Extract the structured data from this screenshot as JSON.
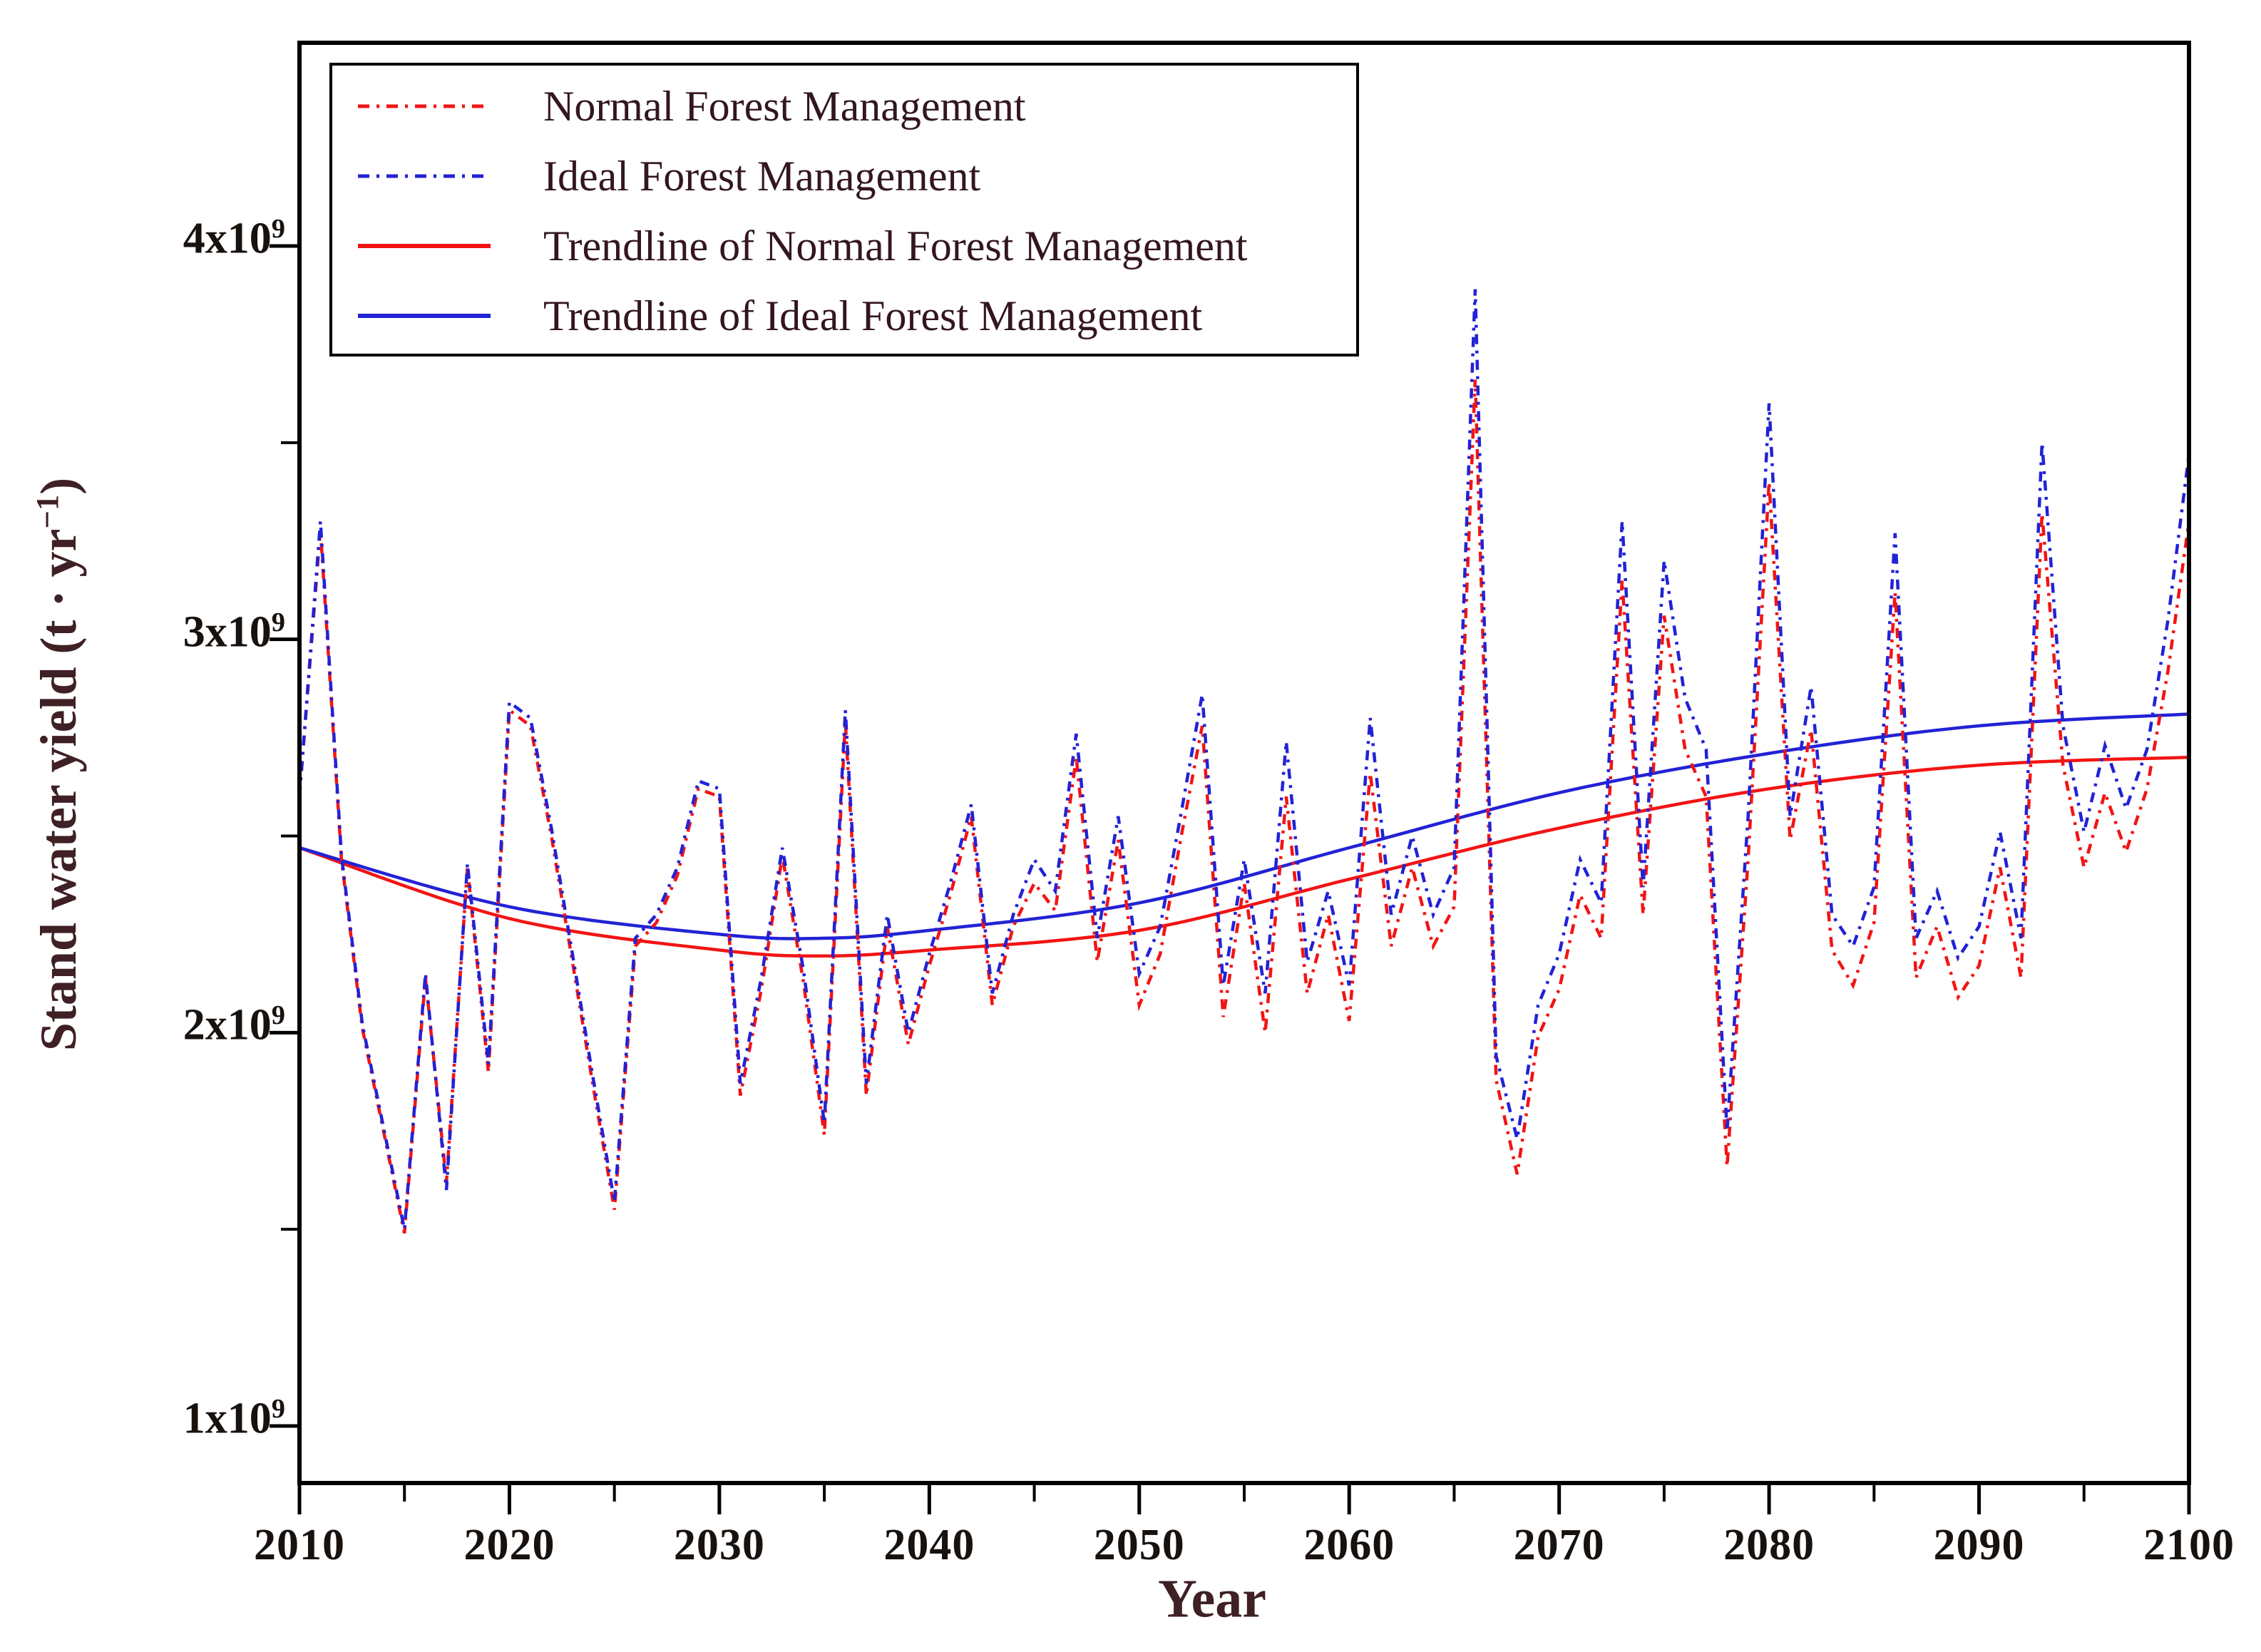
{
  "figure": {
    "background": "#ffffff",
    "frame_color": "#000000",
    "tick_label_color": "#18120f",
    "axis_title_color": "#3f2024",
    "legend_text_color": "#33161f"
  },
  "axes": {
    "x": {
      "title": "Year",
      "min": 2010,
      "max": 2100,
      "major_tick_step": 10,
      "minor_tick_step": 5,
      "tick_labels": [
        "2010",
        "2020",
        "2030",
        "2040",
        "2050",
        "2060",
        "2070",
        "2080",
        "2090",
        "2100"
      ],
      "tick_values": [
        2010,
        2020,
        2030,
        2040,
        2050,
        2060,
        2070,
        2080,
        2090,
        2100
      ],
      "minor_tick_values": [
        2015,
        2025,
        2035,
        2045,
        2055,
        2065,
        2075,
        2085,
        2095
      ]
    },
    "y": {
      "title_prefix": "Stand water yield (t · yr",
      "title_sup": "−1",
      "title_suffix": ")",
      "unit": "t per year",
      "ticks": [
        {
          "base": "1x10",
          "sup": "9",
          "value": 1
        },
        {
          "base": "2x10",
          "sup": "9",
          "value": 2
        },
        {
          "base": "3x10",
          "sup": "9",
          "value": 3
        },
        {
          "base": "4x10",
          "sup": "9",
          "value": 4
        }
      ],
      "minor_tick_values": [
        1.5,
        2.5,
        3.5
      ]
    }
  },
  "legend": {
    "position": "top-left",
    "items": [
      {
        "label": "Normal Forest Management",
        "series": "normal",
        "line": "dash-dot"
      },
      {
        "label": "Ideal Forest Management",
        "series": "ideal",
        "line": "dash-dot"
      },
      {
        "label": "Trendline of Normal Forest Management",
        "series": "normal",
        "line": "solid"
      },
      {
        "label": "Trendline of Ideal Forest Management",
        "series": "ideal",
        "line": "solid"
      }
    ]
  },
  "colors": {
    "normal": "#f21414",
    "ideal": "#2222d6"
  },
  "chart_data": {
    "type": "line",
    "title": "",
    "xlabel": "Year",
    "ylabel": "Stand water yield (t · yr−1)",
    "value_unit": "1e9 t/yr",
    "xlim": [
      2010,
      2100
    ],
    "ylim_1e9": [
      0.85,
      4.52
    ],
    "grid": false,
    "legend_position": "top-left",
    "x": [
      2010,
      2011,
      2012,
      2013,
      2014,
      2015,
      2016,
      2017,
      2018,
      2019,
      2020,
      2021,
      2022,
      2023,
      2024,
      2025,
      2026,
      2027,
      2028,
      2029,
      2030,
      2031,
      2032,
      2033,
      2034,
      2035,
      2036,
      2037,
      2038,
      2039,
      2040,
      2041,
      2042,
      2043,
      2044,
      2045,
      2046,
      2047,
      2048,
      2049,
      2050,
      2051,
      2052,
      2053,
      2054,
      2055,
      2056,
      2057,
      2058,
      2059,
      2060,
      2061,
      2062,
      2063,
      2064,
      2065,
      2066,
      2067,
      2068,
      2069,
      2070,
      2071,
      2072,
      2073,
      2074,
      2075,
      2076,
      2077,
      2078,
      2079,
      2080,
      2081,
      2082,
      2083,
      2084,
      2085,
      2086,
      2087,
      2088,
      2089,
      2090,
      2091,
      2092,
      2093,
      2094,
      2095,
      2096,
      2097,
      2098,
      2099,
      2100
    ],
    "series": [
      {
        "name": "Normal Forest Management",
        "color": "#f21414",
        "style": "dash-dot",
        "values_1e9": [
          2.6,
          3.28,
          2.44,
          2.01,
          1.75,
          1.49,
          2.14,
          1.62,
          2.42,
          1.9,
          2.82,
          2.78,
          2.5,
          2.18,
          1.86,
          1.55,
          2.22,
          2.28,
          2.4,
          2.62,
          2.6,
          1.84,
          2.11,
          2.45,
          2.13,
          1.74,
          2.79,
          1.84,
          2.27,
          1.97,
          2.17,
          2.35,
          2.55,
          2.07,
          2.27,
          2.38,
          2.31,
          2.7,
          2.18,
          2.49,
          2.07,
          2.2,
          2.5,
          2.78,
          2.04,
          2.38,
          2.0,
          2.6,
          2.1,
          2.3,
          2.03,
          2.66,
          2.22,
          2.42,
          2.22,
          2.32,
          3.66,
          1.88,
          1.64,
          1.99,
          2.11,
          2.35,
          2.24,
          3.15,
          2.3,
          3.06,
          2.72,
          2.6,
          1.66,
          2.44,
          3.4,
          2.49,
          2.77,
          2.21,
          2.12,
          2.28,
          3.12,
          2.14,
          2.27,
          2.09,
          2.17,
          2.42,
          2.14,
          3.32,
          2.68,
          2.42,
          2.61,
          2.46,
          2.62,
          2.92,
          3.3
        ]
      },
      {
        "name": "Ideal Forest Management",
        "color": "#2222d6",
        "style": "dash-dot",
        "values_1e9": [
          2.6,
          3.3,
          2.45,
          2.02,
          1.76,
          1.5,
          2.15,
          1.6,
          2.43,
          1.92,
          2.84,
          2.8,
          2.52,
          2.2,
          1.88,
          1.57,
          2.24,
          2.3,
          2.42,
          2.64,
          2.62,
          1.87,
          2.14,
          2.47,
          2.16,
          1.77,
          2.82,
          1.87,
          2.3,
          2.0,
          2.2,
          2.38,
          2.58,
          2.1,
          2.3,
          2.44,
          2.36,
          2.76,
          2.24,
          2.55,
          2.15,
          2.27,
          2.56,
          2.86,
          2.12,
          2.44,
          2.1,
          2.74,
          2.18,
          2.36,
          2.12,
          2.8,
          2.3,
          2.5,
          2.3,
          2.42,
          3.89,
          1.94,
          1.73,
          2.07,
          2.2,
          2.44,
          2.33,
          3.3,
          2.37,
          3.2,
          2.85,
          2.72,
          1.75,
          2.55,
          3.6,
          2.55,
          2.88,
          2.3,
          2.22,
          2.37,
          3.27,
          2.24,
          2.36,
          2.19,
          2.27,
          2.51,
          2.24,
          3.5,
          2.78,
          2.51,
          2.73,
          2.57,
          2.72,
          3.05,
          3.47
        ]
      }
    ],
    "trendlines": [
      {
        "name": "Trendline of Normal Forest Management",
        "color": "#f21414",
        "style": "solid",
        "points_year_1e9": [
          [
            2010,
            2.47
          ],
          [
            2020,
            2.29
          ],
          [
            2030,
            2.21
          ],
          [
            2035,
            2.195
          ],
          [
            2040,
            2.21
          ],
          [
            2050,
            2.26
          ],
          [
            2060,
            2.39
          ],
          [
            2070,
            2.52
          ],
          [
            2080,
            2.62
          ],
          [
            2090,
            2.68
          ],
          [
            2100,
            2.7
          ]
        ]
      },
      {
        "name": "Trendline of Ideal Forest Management",
        "color": "#2222d6",
        "style": "solid",
        "points_year_1e9": [
          [
            2010,
            2.47
          ],
          [
            2020,
            2.32
          ],
          [
            2030,
            2.25
          ],
          [
            2035,
            2.24
          ],
          [
            2040,
            2.26
          ],
          [
            2050,
            2.33
          ],
          [
            2060,
            2.47
          ],
          [
            2070,
            2.61
          ],
          [
            2080,
            2.71
          ],
          [
            2090,
            2.78
          ],
          [
            2100,
            2.81
          ]
        ]
      }
    ]
  }
}
